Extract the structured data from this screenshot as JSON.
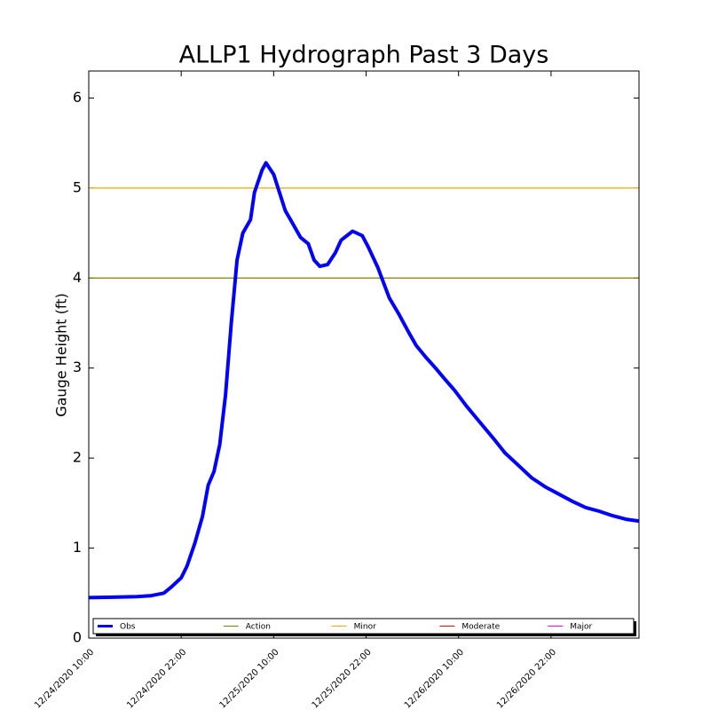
{
  "chart_data": {
    "type": "line",
    "title": "ALLP1 Hydrograph Past 3 Days",
    "ylabel": "Gauge Height (ft)",
    "xlim": [
      "2020-12-24T10:00",
      "2020-12-27T09:25"
    ],
    "ylim": [
      0,
      6.3
    ],
    "yticks": [
      0,
      1,
      2,
      3,
      4,
      5,
      6
    ],
    "xticks": [
      {
        "value": "2020-12-24T10:00",
        "label": "12/24/2020 10:00"
      },
      {
        "value": "2020-12-24T22:00",
        "label": "12/24/2020 22:00"
      },
      {
        "value": "2020-12-25T10:00",
        "label": "12/25/2020 10:00"
      },
      {
        "value": "2020-12-25T22:00",
        "label": "12/25/2020 22:00"
      },
      {
        "value": "2020-12-26T10:00",
        "label": "12/26/2020 10:00"
      },
      {
        "value": "2020-12-26T22:00",
        "label": "12/26/2020 22:00"
      }
    ],
    "x": [
      "2020-12-24T10:00",
      "2020-12-24T16:15",
      "2020-12-24T18:00",
      "2020-12-24T19:45",
      "2020-12-24T20:45",
      "2020-12-24T22:00",
      "2020-12-24T22:45",
      "2020-12-24T23:45",
      "2020-12-25T00:45",
      "2020-12-25T01:30",
      "2020-12-25T02:15",
      "2020-12-25T03:00",
      "2020-12-25T03:45",
      "2020-12-25T04:30",
      "2020-12-25T05:15",
      "2020-12-25T06:00",
      "2020-12-25T07:00",
      "2020-12-25T07:30",
      "2020-12-25T08:30",
      "2020-12-25T09:00",
      "2020-12-25T10:00",
      "2020-12-25T10:45",
      "2020-12-25T11:30",
      "2020-12-25T12:30",
      "2020-12-25T13:30",
      "2020-12-25T14:30",
      "2020-12-25T15:15",
      "2020-12-25T16:00",
      "2020-12-25T17:00",
      "2020-12-25T18:00",
      "2020-12-25T18:45",
      "2020-12-25T20:15",
      "2020-12-25T21:30",
      "2020-12-25T22:15",
      "2020-12-25T23:30",
      "2020-12-26T00:15",
      "2020-12-26T01:00",
      "2020-12-26T02:15",
      "2020-12-26T03:30",
      "2020-12-26T04:30",
      "2020-12-26T05:45",
      "2020-12-26T07:00",
      "2020-12-26T08:00",
      "2020-12-26T09:30",
      "2020-12-26T11:00",
      "2020-12-26T12:45",
      "2020-12-26T14:30",
      "2020-12-26T16:00",
      "2020-12-26T18:00",
      "2020-12-26T19:30",
      "2020-12-26T21:15",
      "2020-12-26T23:00",
      "2020-12-27T00:45",
      "2020-12-27T02:30",
      "2020-12-27T04:15",
      "2020-12-27T06:00",
      "2020-12-27T07:45",
      "2020-12-27T09:25"
    ],
    "series": [
      {
        "name": "Obs",
        "color": "#0000ff",
        "values": [
          0.45,
          0.46,
          0.47,
          0.5,
          0.57,
          0.67,
          0.8,
          1.05,
          1.35,
          1.7,
          1.85,
          2.15,
          2.7,
          3.5,
          4.2,
          4.5,
          4.65,
          4.95,
          5.2,
          5.28,
          5.15,
          4.95,
          4.75,
          4.6,
          4.45,
          4.38,
          4.2,
          4.13,
          4.15,
          4.28,
          4.42,
          4.52,
          4.47,
          4.35,
          4.12,
          3.95,
          3.78,
          3.6,
          3.4,
          3.25,
          3.12,
          3.0,
          2.9,
          2.75,
          2.58,
          2.4,
          2.22,
          2.06,
          1.9,
          1.78,
          1.68,
          1.6,
          1.52,
          1.45,
          1.41,
          1.36,
          1.32,
          1.3
        ]
      }
    ],
    "thresholds": [
      {
        "name": "Action",
        "color": "#808000",
        "value": 4
      },
      {
        "name": "Minor",
        "color": "#ffa500",
        "value": 5
      },
      {
        "name": "Moderate",
        "color": "#ff0000"
      },
      {
        "name": "Major",
        "color": "#ff00ff"
      }
    ],
    "legend": "bottom"
  }
}
